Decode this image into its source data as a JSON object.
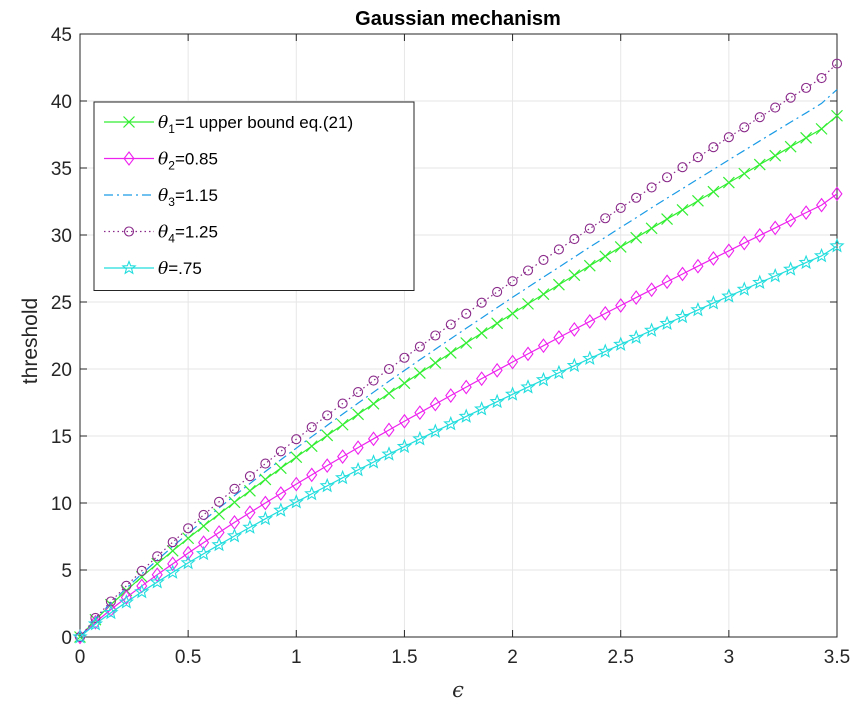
{
  "chart_data": {
    "type": "line",
    "title": "Gaussian mechanism",
    "xlabel": "ϵ",
    "ylabel": "threshold",
    "xlim": [
      0,
      3.5
    ],
    "ylim": [
      0,
      45
    ],
    "xticks": [
      0,
      0.5,
      1,
      1.5,
      2,
      2.5,
      3,
      3.5
    ],
    "xtick_labels": [
      "0",
      "0.5",
      "1",
      "1.5",
      "2",
      "2.5",
      "3",
      "3.5"
    ],
    "yticks": [
      0,
      5,
      10,
      15,
      20,
      25,
      30,
      35,
      40,
      45
    ],
    "ytick_labels": [
      "0",
      "5",
      "10",
      "15",
      "20",
      "25",
      "30",
      "35",
      "40",
      "45"
    ],
    "grid": true,
    "legend_position": "top-left",
    "x": [
      0,
      0.0714,
      0.1429,
      0.2143,
      0.2857,
      0.3571,
      0.4286,
      0.5,
      0.5714,
      0.6429,
      0.7143,
      0.7857,
      0.8571,
      0.9286,
      1.0,
      1.0714,
      1.1429,
      1.2143,
      1.2857,
      1.3571,
      1.4286,
      1.5,
      1.5714,
      1.6429,
      1.7143,
      1.7857,
      1.8571,
      1.9286,
      2.0,
      2.0714,
      2.1429,
      2.2143,
      2.2857,
      2.3571,
      2.4286,
      2.5,
      2.5714,
      2.6429,
      2.7143,
      2.7857,
      2.8571,
      2.9286,
      3.0,
      3.0714,
      3.1429,
      3.2143,
      3.2857,
      3.3571,
      3.4286,
      3.5
    ],
    "series": [
      {
        "name": "θ1=1 upper bound eq.(21)",
        "legend_parts": {
          "pre": "θ",
          "sub": "1",
          "post": "=1 upper bound eq.(21)"
        },
        "color": "#33ee33",
        "line_style": "solid",
        "marker": "x",
        "values": [
          0,
          1.29,
          2.41,
          3.47,
          4.49,
          5.47,
          6.43,
          7.37,
          8.28,
          9.17,
          10.05,
          10.91,
          11.76,
          12.6,
          13.42,
          14.24,
          15.04,
          15.84,
          16.62,
          17.4,
          18.18,
          18.94,
          19.7,
          20.45,
          21.2,
          21.94,
          22.68,
          23.41,
          24.14,
          24.86,
          25.58,
          26.29,
          27.0,
          27.71,
          28.41,
          29.11,
          29.8,
          30.5,
          31.19,
          31.87,
          32.55,
          33.23,
          33.91,
          34.58,
          35.26,
          35.92,
          36.59,
          37.25,
          37.92,
          38.9
        ]
      },
      {
        "name": "θ2=0.85",
        "legend_parts": {
          "pre": "θ",
          "sub": "2",
          "post": "=0.85"
        },
        "color": "#ee22ee",
        "line_style": "solid",
        "marker": "diamond",
        "values": [
          0,
          1.1,
          2.05,
          2.95,
          3.81,
          4.65,
          5.46,
          6.26,
          7.04,
          7.8,
          8.55,
          9.28,
          10.0,
          10.71,
          11.41,
          12.1,
          12.79,
          13.46,
          14.13,
          14.79,
          15.45,
          16.1,
          16.74,
          17.38,
          18.02,
          18.65,
          19.28,
          19.9,
          20.52,
          21.13,
          21.74,
          22.35,
          22.95,
          23.55,
          24.15,
          24.74,
          25.33,
          25.92,
          26.51,
          27.09,
          27.67,
          28.25,
          28.82,
          29.4,
          29.97,
          30.53,
          31.1,
          31.67,
          32.23,
          33.07
        ]
      },
      {
        "name": "θ3=1.15",
        "legend_parts": {
          "pre": "θ",
          "sub": "3",
          "post": "=1.15"
        },
        "color": "#1a9be6",
        "line_style": "dashdot",
        "marker": "none",
        "values": [
          0,
          1.36,
          2.53,
          3.64,
          4.71,
          5.74,
          6.75,
          7.74,
          8.69,
          9.63,
          10.55,
          11.45,
          12.35,
          13.23,
          14.09,
          14.95,
          15.79,
          16.63,
          17.45,
          18.27,
          19.09,
          19.89,
          20.69,
          21.47,
          22.26,
          23.04,
          23.81,
          24.58,
          25.35,
          26.1,
          26.86,
          27.6,
          28.35,
          29.1,
          29.83,
          30.57,
          31.29,
          32.03,
          32.75,
          33.46,
          34.18,
          34.89,
          35.61,
          36.31,
          37.02,
          37.72,
          38.42,
          39.11,
          39.82,
          40.85
        ]
      },
      {
        "name": "θ4=1.25",
        "legend_parts": {
          "pre": "θ",
          "sub": "4",
          "post": "=1.25"
        },
        "color": "#8a2a8a",
        "line_style": "dotted",
        "marker": "circle",
        "values": [
          0,
          1.42,
          2.65,
          3.82,
          4.94,
          6.02,
          7.08,
          8.11,
          9.11,
          10.09,
          11.06,
          12.0,
          12.94,
          13.86,
          14.76,
          15.66,
          16.54,
          17.42,
          18.28,
          19.14,
          20.0,
          20.84,
          21.67,
          22.5,
          23.32,
          24.13,
          24.95,
          25.75,
          26.55,
          27.35,
          28.14,
          28.92,
          29.7,
          30.48,
          31.25,
          32.02,
          32.78,
          33.55,
          34.31,
          35.06,
          35.81,
          36.55,
          37.3,
          38.04,
          38.79,
          39.51,
          40.25,
          40.98,
          41.71,
          42.79
        ]
      },
      {
        "name": "θ=.75",
        "legend_parts": {
          "pre": "θ",
          "sub": "",
          "post": "=.75"
        },
        "color": "#22dddd",
        "line_style": "solid",
        "marker": "star",
        "values": [
          0,
          0.97,
          1.81,
          2.6,
          3.37,
          4.1,
          4.82,
          5.53,
          6.21,
          6.88,
          7.54,
          8.18,
          8.82,
          9.45,
          10.07,
          10.68,
          11.28,
          11.88,
          12.47,
          13.05,
          13.64,
          14.21,
          14.78,
          15.34,
          15.9,
          16.46,
          17.01,
          17.56,
          18.11,
          18.65,
          19.19,
          19.72,
          20.25,
          20.78,
          21.31,
          21.83,
          22.35,
          22.88,
          23.39,
          23.9,
          24.41,
          24.92,
          25.43,
          25.94,
          26.45,
          26.94,
          27.44,
          27.94,
          28.44,
          29.18
        ]
      }
    ]
  }
}
